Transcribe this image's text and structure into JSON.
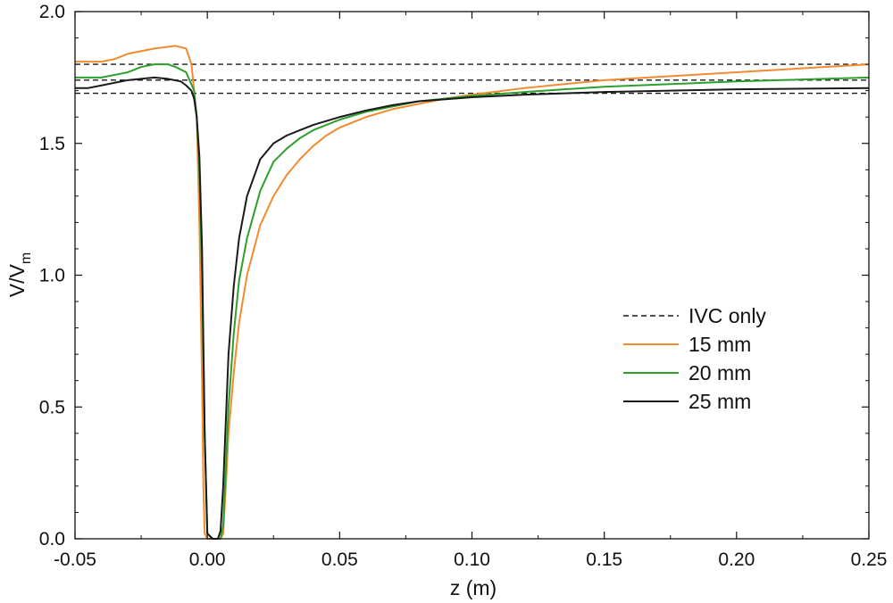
{
  "chart_data": {
    "type": "line",
    "title": "",
    "xlabel": "z (m)",
    "ylabel_main": "V/V",
    "ylabel_sub": "m",
    "xlim": [
      -0.05,
      0.25
    ],
    "ylim": [
      0.0,
      2.0
    ],
    "x_ticks": [
      -0.05,
      0.0,
      0.05,
      0.1,
      0.15,
      0.2,
      0.25
    ],
    "x_tick_labels": [
      "-0.05",
      "0.00",
      "0.05",
      "0.10",
      "0.15",
      "0.20",
      "0.25"
    ],
    "y_ticks": [
      0.0,
      0.5,
      1.0,
      1.5,
      2.0
    ],
    "y_tick_labels": [
      "0.0",
      "0.5",
      "1.0",
      "1.5",
      "2.0"
    ],
    "grid": false,
    "legend_position": "right-middle",
    "colors": {
      "orange": "#f28a30",
      "green": "#2ca02c",
      "black": "#1a1a1a"
    },
    "reference_lines": {
      "name": "IVC only",
      "style": "dashed",
      "color": "#1a1a1a",
      "values": [
        1.8,
        1.74,
        1.69
      ]
    },
    "series": [
      {
        "name": "15 mm",
        "color": "#f28a30",
        "x": [
          -0.05,
          -0.04,
          -0.035,
          -0.03,
          -0.02,
          -0.012,
          -0.008,
          -0.006,
          -0.004,
          -0.003,
          -0.002,
          -0.0015,
          -0.001,
          0.0,
          0.002,
          0.005,
          0.006,
          0.007,
          0.008,
          0.01,
          0.012,
          0.015,
          0.02,
          0.025,
          0.03,
          0.035,
          0.04,
          0.045,
          0.05,
          0.06,
          0.07,
          0.08,
          0.09,
          0.1,
          0.12,
          0.15,
          0.2,
          0.25
        ],
        "y": [
          1.81,
          1.81,
          1.82,
          1.84,
          1.86,
          1.87,
          1.86,
          1.8,
          1.6,
          1.2,
          0.6,
          0.2,
          0.02,
          0.0,
          0.0,
          0.0,
          0.02,
          0.2,
          0.4,
          0.63,
          0.82,
          1.0,
          1.19,
          1.3,
          1.38,
          1.44,
          1.49,
          1.53,
          1.56,
          1.6,
          1.63,
          1.65,
          1.67,
          1.685,
          1.71,
          1.74,
          1.77,
          1.8
        ]
      },
      {
        "name": "20 mm",
        "color": "#2ca02c",
        "x": [
          -0.05,
          -0.04,
          -0.035,
          -0.03,
          -0.025,
          -0.02,
          -0.015,
          -0.012,
          -0.008,
          -0.005,
          -0.004,
          -0.003,
          -0.002,
          -0.001,
          0.0,
          0.002,
          0.005,
          0.006,
          0.007,
          0.008,
          0.01,
          0.012,
          0.015,
          0.02,
          0.025,
          0.03,
          0.035,
          0.04,
          0.05,
          0.06,
          0.07,
          0.08,
          0.1,
          0.12,
          0.15,
          0.2,
          0.25
        ],
        "y": [
          1.75,
          1.75,
          1.76,
          1.77,
          1.79,
          1.8,
          1.8,
          1.79,
          1.77,
          1.7,
          1.6,
          1.4,
          1.0,
          0.4,
          0.02,
          0.0,
          0.0,
          0.05,
          0.27,
          0.5,
          0.78,
          0.98,
          1.14,
          1.32,
          1.43,
          1.48,
          1.52,
          1.55,
          1.59,
          1.62,
          1.64,
          1.66,
          1.68,
          1.695,
          1.715,
          1.735,
          1.75
        ]
      },
      {
        "name": "25 mm",
        "color": "#1a1a1a",
        "x": [
          -0.05,
          -0.045,
          -0.04,
          -0.035,
          -0.03,
          -0.025,
          -0.02,
          -0.015,
          -0.01,
          -0.008,
          -0.006,
          -0.005,
          -0.004,
          -0.003,
          -0.002,
          -0.001,
          0.0,
          0.002,
          0.004,
          0.005,
          0.006,
          0.007,
          0.008,
          0.01,
          0.012,
          0.015,
          0.02,
          0.025,
          0.03,
          0.035,
          0.04,
          0.05,
          0.06,
          0.07,
          0.08,
          0.1,
          0.12,
          0.15,
          0.2,
          0.25
        ],
        "y": [
          1.71,
          1.71,
          1.72,
          1.73,
          1.74,
          1.745,
          1.75,
          1.745,
          1.735,
          1.72,
          1.7,
          1.67,
          1.6,
          1.45,
          1.1,
          0.4,
          0.02,
          0.0,
          0.0,
          0.03,
          0.2,
          0.45,
          0.7,
          0.96,
          1.14,
          1.3,
          1.44,
          1.5,
          1.53,
          1.55,
          1.57,
          1.6,
          1.625,
          1.645,
          1.66,
          1.675,
          1.685,
          1.695,
          1.705,
          1.71
        ]
      }
    ]
  }
}
